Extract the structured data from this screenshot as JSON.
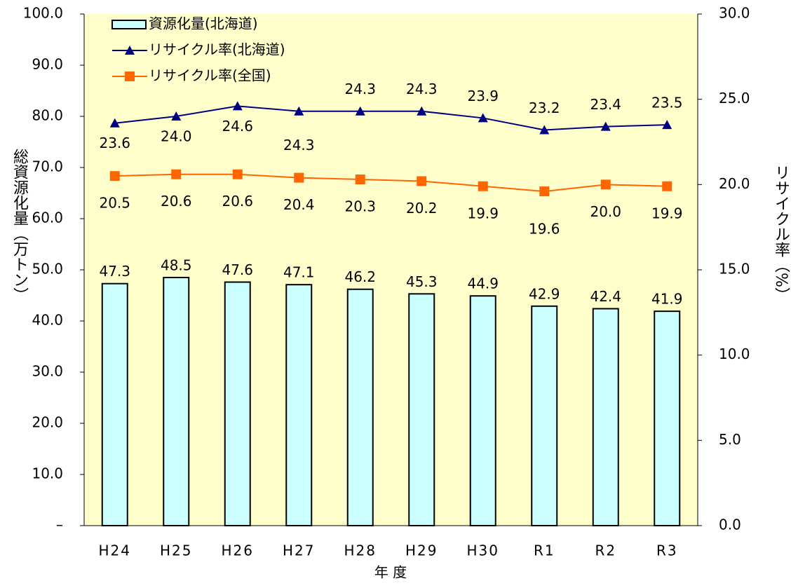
{
  "chart_data": {
    "type": "bar",
    "x_label": "年 度",
    "y_label": "総資源化量（万トン）",
    "y2_label": "リサイクル率（%）",
    "categories": [
      "H24",
      "H25",
      "H26",
      "H27",
      "H28",
      "H29",
      "H30",
      "R1",
      "R2",
      "R3"
    ],
    "series": [
      {
        "name": "資源化量(北海道)",
        "type": "bar",
        "color": "#ccffff",
        "values": [
          47.3,
          48.5,
          47.6,
          47.1,
          46.2,
          45.3,
          44.9,
          42.9,
          42.4,
          41.9
        ],
        "value_labels": [
          "47.3",
          "48.5",
          "47.6",
          "47.1",
          "46.2",
          "45.3",
          "44.9",
          "42.9",
          "42.4",
          "41.9"
        ]
      },
      {
        "name": "リサイクル率(北海道)",
        "type": "line",
        "marker": "triangle",
        "axis": "y2",
        "color": "#000080",
        "values": [
          23.6,
          24.0,
          24.6,
          24.3,
          24.3,
          24.3,
          23.9,
          23.2,
          23.4,
          23.5
        ],
        "value_labels": [
          "23.6",
          "24.0",
          "24.6",
          "24.3",
          "24.3",
          "24.3",
          "23.9",
          "23.2",
          "23.4",
          "23.5"
        ]
      },
      {
        "name": "リサイクル率(全国)",
        "type": "line",
        "marker": "square",
        "axis": "y2",
        "color": "#ff6600",
        "values": [
          20.5,
          20.6,
          20.6,
          20.4,
          20.3,
          20.2,
          19.9,
          19.6,
          20.0,
          19.9
        ],
        "value_labels": [
          "20.5",
          "20.6",
          "20.6",
          "20.4",
          "20.3",
          "20.2",
          "19.9",
          "19.6",
          "20.0",
          "19.9"
        ]
      }
    ],
    "ylim": [
      0,
      100
    ],
    "yticks": [
      {
        "value": 0,
        "label": "–"
      },
      {
        "value": 10,
        "label": "10.0"
      },
      {
        "value": 20,
        "label": "20.0"
      },
      {
        "value": 30,
        "label": "30.0"
      },
      {
        "value": 40,
        "label": "40.0"
      },
      {
        "value": 50,
        "label": "50.0"
      },
      {
        "value": 60,
        "label": "60.0"
      },
      {
        "value": 70,
        "label": "70.0"
      },
      {
        "value": 80,
        "label": "80.0"
      },
      {
        "value": 90,
        "label": "90.0"
      },
      {
        "value": 100,
        "label": "100.0"
      }
    ],
    "y2lim": [
      0,
      30
    ],
    "y2ticks": [
      {
        "value": 0,
        "label": "0.0"
      },
      {
        "value": 5,
        "label": "5.0"
      },
      {
        "value": 10,
        "label": "10.0"
      },
      {
        "value": 15,
        "label": "15.0"
      },
      {
        "value": 20,
        "label": "20.0"
      },
      {
        "value": 25,
        "label": "25.0"
      },
      {
        "value": 30,
        "label": "30.0"
      }
    ],
    "plot_background": "#ffffcc",
    "grid": false,
    "legend": "upper left"
  }
}
